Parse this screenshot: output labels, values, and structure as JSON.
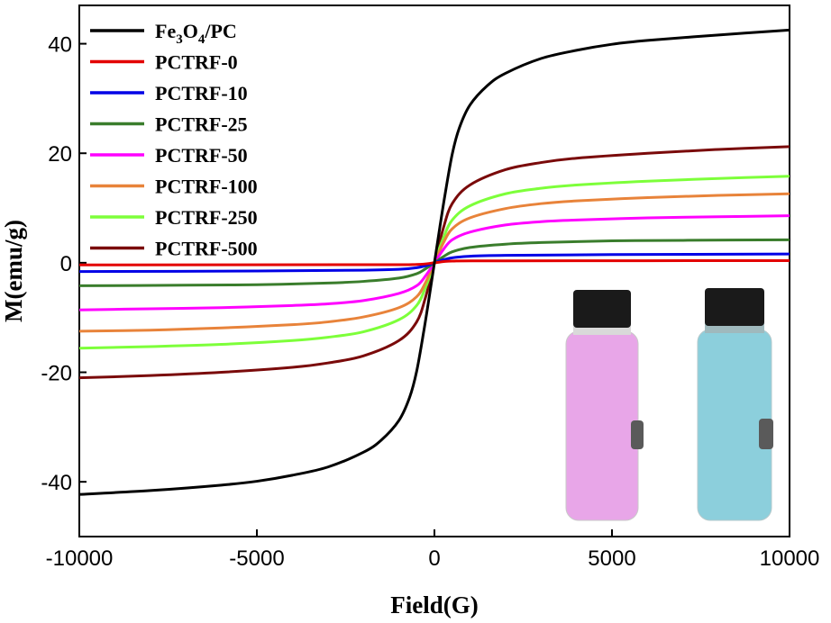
{
  "chart_data": {
    "type": "line",
    "xlabel": "Field(G)",
    "ylabel": "M(emu/g)",
    "xlim": [
      -10000,
      10000
    ],
    "ylim": [
      -50,
      47
    ],
    "x_ticks": [
      -10000,
      -5000,
      0,
      5000,
      10000
    ],
    "x_tick_labels": [
      "-10000",
      "-5000",
      "0",
      "5000",
      "10000"
    ],
    "y_ticks": [
      -40,
      -20,
      0,
      20,
      40
    ],
    "y_tick_labels": [
      "-40",
      "-20",
      "0",
      "20",
      "40"
    ],
    "grid": false,
    "legend_position": "top-left",
    "series": [
      {
        "name": "Fe3O4/PC",
        "label_base": "Fe",
        "label_sub1": "3",
        "label_mid": "O",
        "label_sub2": "4",
        "label_end": "/PC",
        "color": "#000000",
        "points": [
          [
            -10000,
            -42.3
          ],
          [
            -8000,
            -41.6
          ],
          [
            -6000,
            -40.6
          ],
          [
            -5000,
            -39.9
          ],
          [
            -4000,
            -38.8
          ],
          [
            -3000,
            -37.3
          ],
          [
            -2000,
            -34.6
          ],
          [
            -1500,
            -32.4
          ],
          [
            -1000,
            -28.8
          ],
          [
            -700,
            -24.6
          ],
          [
            -500,
            -19.8
          ],
          [
            -300,
            -12.5
          ],
          [
            -150,
            -6.4
          ],
          [
            0,
            0
          ],
          [
            150,
            6.4
          ],
          [
            300,
            12.5
          ],
          [
            500,
            19.8
          ],
          [
            700,
            24.6
          ],
          [
            1000,
            28.8
          ],
          [
            1500,
            32.4
          ],
          [
            2000,
            34.6
          ],
          [
            3000,
            37.3
          ],
          [
            4000,
            38.8
          ],
          [
            5000,
            39.9
          ],
          [
            6000,
            40.6
          ],
          [
            8000,
            41.6
          ],
          [
            10000,
            42.5
          ]
        ]
      },
      {
        "name": "PCTRF-0",
        "color": "#e30000",
        "points": [
          [
            -10000,
            -0.4
          ],
          [
            -2000,
            -0.35
          ],
          [
            -500,
            -0.3
          ],
          [
            0,
            0
          ],
          [
            500,
            0.3
          ],
          [
            2000,
            0.35
          ],
          [
            10000,
            0.4
          ]
        ]
      },
      {
        "name": "PCTRF-10",
        "color": "#0000e6",
        "points": [
          [
            -10000,
            -1.6
          ],
          [
            -5000,
            -1.5
          ],
          [
            -2000,
            -1.35
          ],
          [
            -1000,
            -1.2
          ],
          [
            -500,
            -0.9
          ],
          [
            -200,
            -0.45
          ],
          [
            0,
            0
          ],
          [
            200,
            0.45
          ],
          [
            500,
            0.9
          ],
          [
            1000,
            1.2
          ],
          [
            2000,
            1.35
          ],
          [
            5000,
            1.5
          ],
          [
            10000,
            1.6
          ]
        ]
      },
      {
        "name": "PCTRF-25",
        "color": "#3a7d2c",
        "points": [
          [
            -10000,
            -4.2
          ],
          [
            -7000,
            -4.1
          ],
          [
            -5000,
            -4.0
          ],
          [
            -3000,
            -3.7
          ],
          [
            -2000,
            -3.4
          ],
          [
            -1000,
            -2.8
          ],
          [
            -500,
            -2.0
          ],
          [
            -250,
            -1.1
          ],
          [
            0,
            0
          ],
          [
            250,
            1.1
          ],
          [
            500,
            2.0
          ],
          [
            1000,
            2.8
          ],
          [
            2000,
            3.4
          ],
          [
            3000,
            3.7
          ],
          [
            5000,
            4.0
          ],
          [
            7000,
            4.1
          ],
          [
            10000,
            4.2
          ]
        ]
      },
      {
        "name": "PCTRF-50",
        "color": "#ff00ff",
        "points": [
          [
            -10000,
            -8.6
          ],
          [
            -8000,
            -8.4
          ],
          [
            -6000,
            -8.2
          ],
          [
            -4000,
            -7.8
          ],
          [
            -3000,
            -7.5
          ],
          [
            -2000,
            -6.9
          ],
          [
            -1000,
            -5.6
          ],
          [
            -500,
            -4.2
          ],
          [
            -250,
            -2.4
          ],
          [
            0,
            0
          ],
          [
            250,
            2.4
          ],
          [
            500,
            4.2
          ],
          [
            1000,
            5.6
          ],
          [
            2000,
            6.9
          ],
          [
            3000,
            7.5
          ],
          [
            4000,
            7.8
          ],
          [
            6000,
            8.2
          ],
          [
            8000,
            8.4
          ],
          [
            10000,
            8.6
          ]
        ]
      },
      {
        "name": "PCTRF-100",
        "color": "#e8833a",
        "points": [
          [
            -10000,
            -12.5
          ],
          [
            -8000,
            -12.3
          ],
          [
            -6000,
            -11.9
          ],
          [
            -4000,
            -11.3
          ],
          [
            -3000,
            -10.8
          ],
          [
            -2000,
            -9.9
          ],
          [
            -1000,
            -8.2
          ],
          [
            -500,
            -6.2
          ],
          [
            -250,
            -3.6
          ],
          [
            0,
            0
          ],
          [
            250,
            3.6
          ],
          [
            500,
            6.2
          ],
          [
            1000,
            8.2
          ],
          [
            2000,
            9.9
          ],
          [
            3000,
            10.8
          ],
          [
            4000,
            11.3
          ],
          [
            6000,
            11.9
          ],
          [
            8000,
            12.3
          ],
          [
            10000,
            12.6
          ]
        ]
      },
      {
        "name": "PCTRF-250",
        "color": "#7dff3a",
        "points": [
          [
            -10000,
            -15.6
          ],
          [
            -8000,
            -15.3
          ],
          [
            -6000,
            -14.9
          ],
          [
            -4000,
            -14.2
          ],
          [
            -3000,
            -13.6
          ],
          [
            -2000,
            -12.6
          ],
          [
            -1000,
            -10.4
          ],
          [
            -500,
            -7.8
          ],
          [
            -250,
            -4.5
          ],
          [
            0,
            0
          ],
          [
            250,
            4.5
          ],
          [
            500,
            7.8
          ],
          [
            1000,
            10.4
          ],
          [
            2000,
            12.6
          ],
          [
            3000,
            13.6
          ],
          [
            4000,
            14.2
          ],
          [
            6000,
            14.9
          ],
          [
            8000,
            15.4
          ],
          [
            10000,
            15.8
          ]
        ]
      },
      {
        "name": "PCTRF-500",
        "color": "#7a0a0a",
        "points": [
          [
            -10000,
            -21.0
          ],
          [
            -8000,
            -20.6
          ],
          [
            -6000,
            -20.0
          ],
          [
            -4000,
            -19.1
          ],
          [
            -3000,
            -18.3
          ],
          [
            -2000,
            -17.0
          ],
          [
            -1000,
            -14.2
          ],
          [
            -500,
            -10.8
          ],
          [
            -250,
            -6.3
          ],
          [
            0,
            0
          ],
          [
            250,
            6.3
          ],
          [
            500,
            10.8
          ],
          [
            1000,
            14.2
          ],
          [
            2000,
            17.0
          ],
          [
            3000,
            18.3
          ],
          [
            4000,
            19.1
          ],
          [
            6000,
            20.0
          ],
          [
            8000,
            20.7
          ],
          [
            10000,
            21.2
          ]
        ]
      }
    ],
    "inset": {
      "content": "photo of two vials (pink and blue liquid) with a magnet",
      "vial_left_color": "#e8a6e8",
      "vial_right_color": "#8ccfdc",
      "cap_color": "#1a1a1a",
      "magnet_color": "#5a5a5a"
    }
  }
}
